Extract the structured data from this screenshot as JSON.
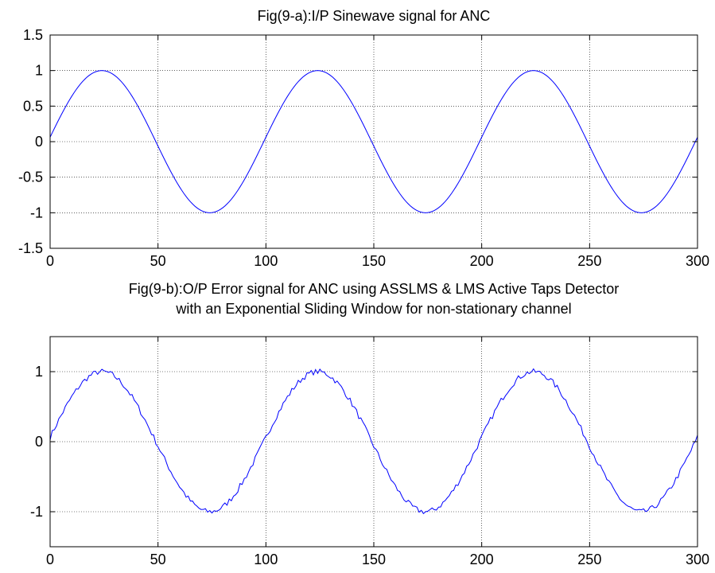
{
  "chart_data": [
    {
      "type": "line",
      "title_lines": [
        "Fig(9-a):I/P Sinewave signal for ANC"
      ],
      "xlabel": "",
      "ylabel": "",
      "xlim": [
        0,
        300
      ],
      "ylim": [
        -1.5,
        1.5
      ],
      "x_ticks": [
        0,
        50,
        100,
        150,
        200,
        250,
        300
      ],
      "y_ticks": [
        -1.5,
        -1,
        -0.5,
        0,
        0.5,
        1,
        1.5
      ],
      "y_tick_labels": [
        "-1.5",
        "-1",
        "-0.5",
        "0",
        "0.5",
        "1",
        "1.5"
      ],
      "grid": true,
      "series": [
        {
          "color": "#0000ff",
          "function": "sine",
          "amplitude": 1,
          "period": 100,
          "phase_offset": 1,
          "x_range": [
            0,
            300
          ],
          "noise": 0
        }
      ]
    },
    {
      "type": "line",
      "title_lines": [
        "Fig(9-b):O/P Error signal for ANC using ASSLMS & LMS  Active Taps Detector",
        "with an Exponential Sliding Window for non-stationary channel"
      ],
      "xlabel": "",
      "ylabel": "",
      "xlim": [
        0,
        300
      ],
      "ylim": [
        -1.5,
        1.5
      ],
      "x_ticks": [
        0,
        50,
        100,
        150,
        200,
        250,
        300
      ],
      "y_ticks": [
        -1,
        0,
        1
      ],
      "y_tick_labels": [
        "-1",
        "0",
        "1"
      ],
      "grid": true,
      "series": [
        {
          "color": "#0000ff",
          "function": "sine",
          "amplitude": 1,
          "period": 100,
          "phase_offset": 1,
          "x_range": [
            0,
            300
          ],
          "noise": 0.04
        }
      ]
    }
  ]
}
